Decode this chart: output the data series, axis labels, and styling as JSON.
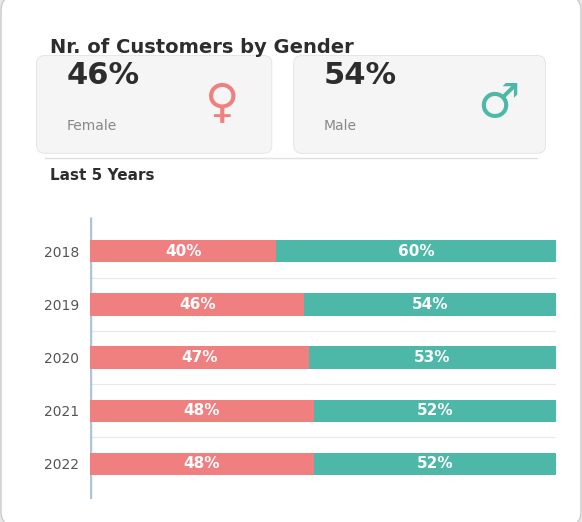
{
  "title": "Nr. of Customers by Gender",
  "summary_female_pct": "46%",
  "summary_female_label": "Female",
  "summary_male_pct": "54%",
  "summary_male_label": "Male",
  "section_label": "Last 5 Years",
  "years": [
    "2018",
    "2019",
    "2020",
    "2021",
    "2022"
  ],
  "female_pct": [
    40,
    46,
    47,
    48,
    48
  ],
  "male_pct": [
    60,
    54,
    53,
    52,
    52
  ],
  "female_color": "#f08080",
  "male_color": "#4db8a8",
  "bar_label_color": "#ffffff",
  "bg_color": "#e8e8e8",
  "card_bg_color": "#ffffff",
  "card_inner_bg": "#f5f5f5",
  "title_fontsize": 14,
  "pct_fontsize": 22,
  "label_fontsize": 10,
  "bar_label_fontsize": 11,
  "year_label_fontsize": 10,
  "section_fontsize": 11,
  "female_symbol": "♀",
  "male_symbol": "♂",
  "sep_color": "#e0e0e0",
  "accent_line_color": "#b0c4d8",
  "year_label_color": "#555555",
  "title_color": "#2d2d2d",
  "pct_color": "#2d2d2d",
  "sublabel_color": "#888888"
}
